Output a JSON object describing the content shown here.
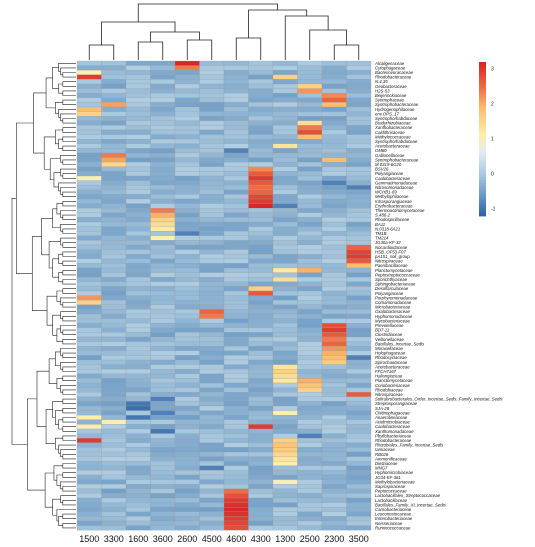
{
  "chart_data": {
    "type": "heatmap",
    "title": "",
    "x": [
      "1500",
      "3300",
      "1600",
      "3600",
      "2600",
      "4500",
      "4600",
      "4300",
      "1300",
      "2500",
      "2300",
      "3500"
    ],
    "y": [
      "Alcaligenaceae",
      "Cytophagaceae",
      "Bacteriovoracaceae",
      "Rhodobacteraceae",
      "N.4.35",
      "Geobacteraceae",
      "H2S-53",
      "Beijerinckiaceae",
      "Syntrophaceae",
      "Syntrophobacteraceae",
      "Hydrogenophilaceae",
      "env.OPS_17",
      "Syntrophorhabdaceae",
      "Bradyrhizobiaceae",
      "Xanthobacteraceae",
      "Caldithrixaceae",
      "Methylococcaceae",
      "Syntrophorhabdaceae",
      "Acetobacteraceae",
      "OM60",
      "Gallionellaceae",
      "Syntrophobacteraceae",
      "M.0319-6G20",
      "BSV26",
      "Polyangiaceae",
      "Caulobacteraceae",
      "Gemmatimonadaceae",
      "Nitrosomonadaceae",
      "WCHB1-69",
      "Methylophilaceae",
      "Intrasporangiaceae",
      "Erythrobacteraceae",
      "Thermoactinomycetaceae",
      "S.486-2",
      "Rhodospirillaceae",
      "BA11",
      "N.0318-6A21",
      "TM1B",
      "TM214",
      "JG30a-KF-32",
      "Nocardioidaceae",
      "HSB_OF53-F07",
      "pA151_soil_group",
      "Nitrospiraceae",
      "Paenibacillaceae",
      "Planctomycetaceae",
      "Peptostreptococcaceae",
      "Sporichthyaceae",
      "Sphingobacteriaceae",
      "Desulfarculaceae",
      "Polyangiaceae",
      "Porphyromonadaceae",
      "Comamonadaceae",
      "Microbacteriaceae",
      "Oxalobacteraceae",
      "Hyphomonadaceae",
      "Mycobacteriaceae",
      "Prevotellaceae",
      "BD7-11",
      "Clostridiaceae",
      "Veillonellaceae",
      "Bacillales_Incertae_Sedis",
      "Moraxellaceae",
      "Holophagaceae",
      "Rhodocyclaceae",
      "Spirochaetaceae",
      "Acetobacteraceae",
      "FFCH7167",
      "Haliangiaceae",
      "Planctomycetaceae",
      "Coriobacteriaceae",
      "Rhodobiaceae",
      "Nitrospiraceae",
      "Solirubrobacterales_Order_Incertae_Sedis_Family_Incertae_Sedis",
      "Streptosporangiaceae",
      "SJA-28",
      "Chitinophagaceae",
      "Anaerolineaceae",
      "Acidimicrobiaceae",
      "Caulobacteraceae",
      "Xanthomonadaceae",
      "Phyllobacteriaceae",
      "Rhodobacteraceae",
      "Rhizobiales_Family_Incertae_Sedis",
      "Iamiaceae",
      "RB026",
      "Ammonificaceae",
      "Dietziaceae",
      "MNG7",
      "Hyphomicrobiaceae",
      "JG34-KF-361",
      "Methylobacteriaceae",
      "Saprospiraceae",
      "Peptococcaceae",
      "Lactobacillales_Streptococcaceae",
      "Lactobacillaceae",
      "Bacillales_Family_XI_Incertae_Sedis",
      "Carnobacteriaceae",
      "Leuconostocaceae",
      "Enterobacteriaceae",
      "Neisseriaceae",
      "Ruminococcaceae"
    ],
    "z_scale": [
      -1,
      0,
      1,
      2,
      3
    ],
    "legend_ticks": [
      "3",
      "2",
      "1",
      "0",
      "-1"
    ],
    "hot_cells": [
      [
        "Alcaligenaceae",
        "2600",
        3.2
      ],
      [
        "Cytophagaceae",
        "2600",
        2.4
      ],
      [
        "Rhodobacteraceae",
        "1500",
        3.0
      ],
      [
        "Bacteriovoracaceae",
        "1500",
        1.1
      ],
      [
        "Geobacteraceae",
        "2500",
        1.6
      ],
      [
        "H2S-53",
        "2500",
        2.2
      ],
      [
        "Beijerinckiaceae",
        "2300",
        2.3
      ],
      [
        "Syntrophaceae",
        "2300",
        2.6
      ],
      [
        "Syntrophobacteraceae",
        "2300",
        1.9
      ],
      [
        "Hydrogenophilaceae",
        "1500",
        1.9
      ],
      [
        "env.OPS_17",
        "1500",
        1.6
      ],
      [
        "Bradyrhizobiaceae",
        "2500",
        1.4
      ],
      [
        "Xanthobacteraceae",
        "2500",
        2.4
      ],
      [
        "Caldithrixaceae",
        "2500",
        2.8
      ],
      [
        "Methylococcaceae",
        "2500",
        1.9
      ],
      [
        "Acetobacteraceae",
        "1300",
        1.2
      ],
      [
        "Gallionellaceae",
        "3300",
        2.4
      ],
      [
        "Syntrophobacteraceae",
        "3300",
        2.1
      ],
      [
        "M.0319-6G20",
        "3300",
        1.5
      ],
      [
        "BSV26",
        "4300",
        2.3
      ],
      [
        "Polyangiaceae",
        "4300",
        2.7
      ],
      [
        "Caulobacteraceae",
        "4300",
        3.0
      ],
      [
        "Gemmatimonadaceae",
        "4300",
        2.7
      ],
      [
        "Nitrosomonadaceae",
        "4300",
        2.5
      ],
      [
        "WCHB1-69",
        "4300",
        2.6
      ],
      [
        "Methylophilaceae",
        "4300",
        2.9
      ],
      [
        "Intrasporangiaceae",
        "4300",
        3.0
      ],
      [
        "Erythrobacteraceae",
        "4300",
        3.2
      ],
      [
        "Thermoactinomycetaceae",
        "3600",
        2.4
      ],
      [
        "S.486-2",
        "3600",
        2.0
      ],
      [
        "Rhodospirillaceae",
        "3600",
        1.6
      ],
      [
        "BA11",
        "3600",
        1.4
      ],
      [
        "N.0318-6A21",
        "3600",
        1.2
      ],
      [
        "TM214",
        "3600",
        1.1
      ],
      [
        "Nocardioidaceae",
        "3500",
        2.6
      ],
      [
        "HSB_OF53-F07",
        "3500",
        2.9
      ],
      [
        "pA151_soil_group",
        "3500",
        3.0
      ],
      [
        "Nitrospiraceae",
        "3500",
        2.7
      ],
      [
        "Paenibacillaceae",
        "3500",
        1.9
      ],
      [
        "Planctomycetaceae",
        "1300",
        1.2
      ],
      [
        "Sporichthyaceae",
        "1300",
        1.4
      ],
      [
        "Desulfarculaceae",
        "4300",
        1.6
      ],
      [
        "Porphyromonadaceae",
        "1500",
        2.2
      ],
      [
        "Comamonadaceae",
        "1500",
        1.6
      ],
      [
        "Oxalobacteraceae",
        "4500",
        2.6
      ],
      [
        "Hyphomonadaceae",
        "4500",
        2.4
      ],
      [
        "Prevotellaceae",
        "2300",
        2.8
      ],
      [
        "BD7-11",
        "2300",
        3.0
      ],
      [
        "Clostridiaceae",
        "2300",
        2.7
      ],
      [
        "Veillonellaceae",
        "2300",
        2.4
      ],
      [
        "Bacillales_Incertae_Sedis",
        "2300",
        2.6
      ],
      [
        "Moraxellaceae",
        "2300",
        2.2
      ],
      [
        "Holophagaceae",
        "2300",
        2.0
      ],
      [
        "Rhodocyclaceae",
        "2300",
        1.9
      ],
      [
        "Spirochaetaceae",
        "2300",
        1.7
      ],
      [
        "Acetobacteraceae",
        "1300",
        1.3
      ],
      [
        "FFCH7167",
        "1300",
        1.6
      ],
      [
        "Haliangiaceae",
        "1300",
        1.4
      ],
      [
        "Planctomycetaceae",
        "2500",
        2.0
      ],
      [
        "Coriobacteriaceae",
        "2500",
        1.8
      ],
      [
        "Rhodobiaceae",
        "2500",
        1.6
      ],
      [
        "Chitinophagaceae",
        "1300",
        1.1
      ],
      [
        "Rhodobacteraceae",
        "1300",
        1.6
      ],
      [
        "Rhizobiales_Family_Incertae_Sedis",
        "1300",
        1.8
      ],
      [
        "Iamiaceae",
        "1300",
        1.7
      ],
      [
        "RB026",
        "1300",
        1.5
      ],
      [
        "Ammonificaceae",
        "1300",
        1.3
      ],
      [
        "Dietziaceae",
        "1300",
        1.1
      ],
      [
        "Methylobacteriaceae",
        "1300",
        1.0
      ],
      [
        "Lactobacillales_Streptococcaceae",
        "4600",
        2.8
      ],
      [
        "Lactobacillaceae",
        "4600",
        3.0
      ],
      [
        "Bacillales_Family_XI_Incertae_Sedis",
        "4600",
        3.1
      ],
      [
        "Carnobacteriaceae",
        "4600",
        3.2
      ],
      [
        "Leuconostocaceae",
        "4600",
        3.1
      ],
      [
        "Enterobacteriaceae",
        "4600",
        3.0
      ],
      [
        "Neisseriaceae",
        "4600",
        2.9
      ],
      [
        "Ruminococcaceae",
        "4600",
        2.8
      ],
      [
        "Peptococcaceae",
        "4600",
        2.5
      ],
      [
        "Anaerolineaceae",
        "1500",
        1.1
      ],
      [
        "Acidimicrobiaceae",
        "3300",
        1.1
      ],
      [
        "Caulobacteraceae",
        "1500",
        1.0
      ]
    ],
    "cold_cells": [
      [
        "Streptosporangiaceae",
        "1600",
        -1.0
      ],
      [
        "SJA-28",
        "1600",
        -1.1
      ],
      [
        "Chitinophagaceae",
        "3600",
        -0.9
      ],
      [
        "Anaerolineaceae",
        "1600",
        -1.0
      ],
      [
        "Xanthomonadaceae",
        "3600",
        -1.0
      ],
      [
        "Phyllobacteriaceae",
        "2500",
        -0.9
      ],
      [
        "Nitrosomonadaceae",
        "3500",
        -0.9
      ],
      [
        "TM1B",
        "2600",
        -0.9
      ],
      [
        "Erythrobacteraceae",
        "1300",
        -0.9
      ],
      [
        "OM60",
        "4600",
        -0.9
      ],
      [
        "Gemmatimonadaceae",
        "2300",
        -0.9
      ],
      [
        "Rhodocyclaceae",
        "3500",
        -0.9
      ],
      [
        "MNG7",
        "4500",
        -0.9
      ],
      [
        "Solirubrobacterales_Order_Incertae_Sedis_Family_Incertae_Sedis",
        "3600",
        -0.9
      ]
    ]
  }
}
